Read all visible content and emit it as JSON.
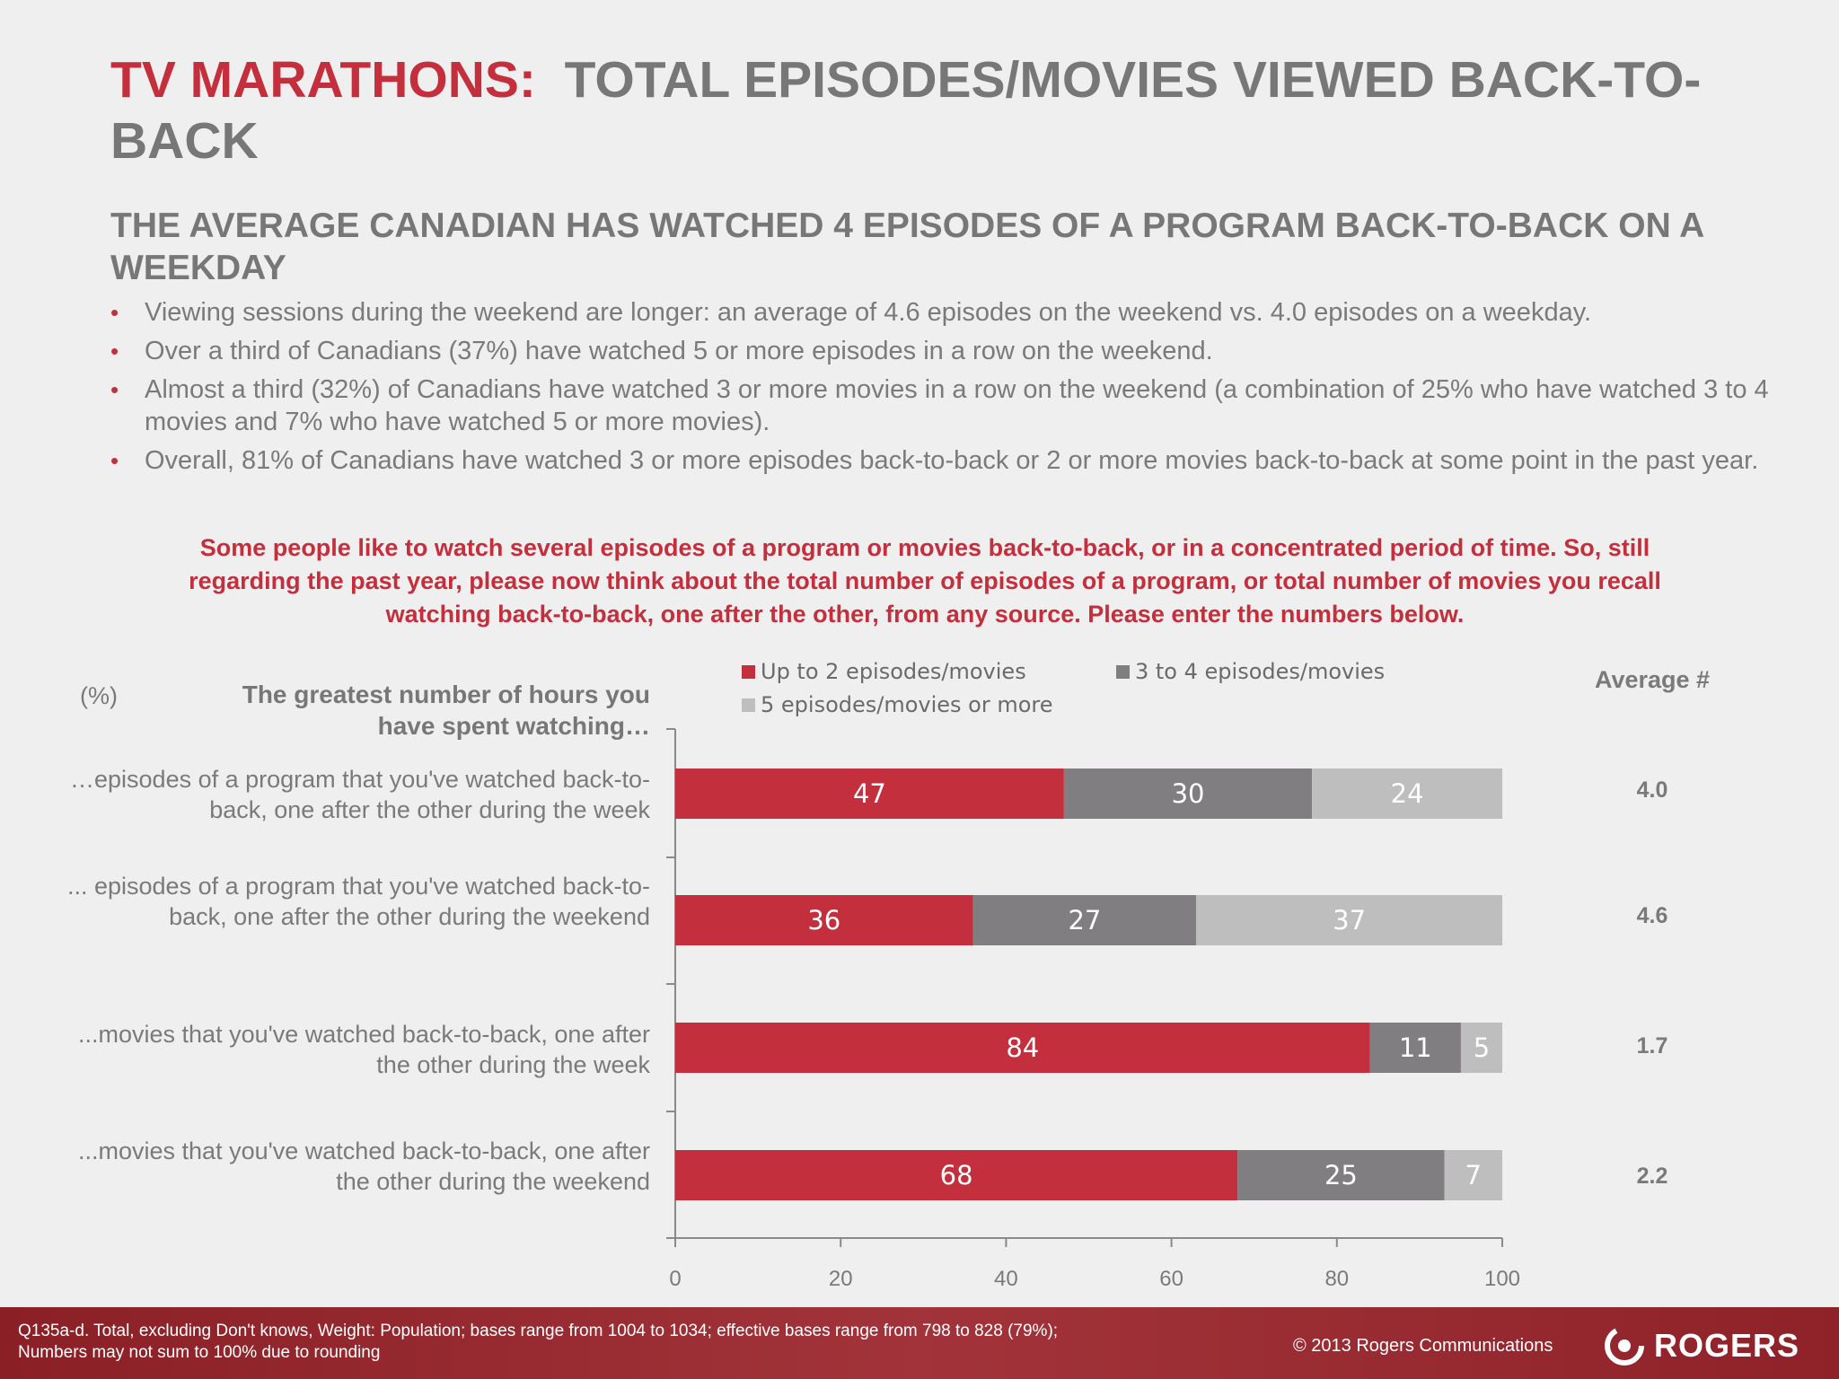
{
  "title": {
    "prefix": "TV MARATHONS:",
    "rest": "TOTAL EPISODES/MOVIES VIEWED BACK-TO-BACK"
  },
  "subtitle": "THE AVERAGE CANADIAN HAS WATCHED 4 EPISODES OF A PROGRAM BACK-TO-BACK ON A WEEKDAY",
  "bullets": [
    "Viewing sessions during the weekend are longer: an average of 4.6 episodes on the weekend vs. 4.0 episodes on a weekday.",
    "Over a third of Canadians (37%) have watched 5 or more episodes  in a row on the  weekend.",
    "Almost a third (32%) of Canadians have watched 3 or more movies in a row on the weekend (a combination of 25% who have watched 3 to 4 movies and 7% who have watched 5 or more movies).",
    "Overall, 81% of Canadians have watched 3 or more episodes back-to-back or 2 or more movies back-to-back at some point in the past year."
  ],
  "question": "Some people like to watch several episodes of a program or movies back-to-back, or in a concentrated period of time. So, still regarding the past year, please now think about the total number of episodes of a program, or total number of movies you recall watching back-to-back, one after the other, from any source. Please enter the numbers below.",
  "pct_label": "(%)",
  "y_header": "The greatest number of hours you have spent watching…",
  "avg_header": "Average #",
  "colors": {
    "red": "#c32f3c",
    "dark_gray": "#807e81",
    "light_gray": "#bfbebf"
  },
  "chart_data": {
    "type": "bar",
    "orientation": "horizontal",
    "stacked": true,
    "categories": [
      "…episodes of a program that you've watched back-to-back, one after the other during the week",
      "... episodes of a program that you've watched back-to-back, one after the other during the weekend",
      "...movies  that you've watched back-to-back, one after the other during the week",
      "...movies  that you've watched back-to-back, one after the other during the weekend"
    ],
    "series": [
      {
        "name": "Up to 2 episodes/movies",
        "values": [
          47,
          36,
          84,
          68
        ],
        "color": "#c32f3c"
      },
      {
        "name": "3 to 4 episodes/movies",
        "values": [
          30,
          27,
          11,
          25
        ],
        "color": "#807e81"
      },
      {
        "name": "5 episodes/movies or more",
        "values": [
          24,
          37,
          5,
          7
        ],
        "color": "#bfbebf"
      }
    ],
    "averages": [
      "4.0",
      "4.6",
      "1.7",
      "2.2"
    ],
    "xlim": [
      0,
      100
    ],
    "xticks": [
      "0",
      "20",
      "40",
      "60",
      "80",
      "100"
    ],
    "legend": "top"
  },
  "footer": {
    "note": "Q135a-d. Total, excluding Don't knows, Weight: Population;  bases range from 1004 to 1034;  effective bases range from 798 to 828 (79%); Numbers may not sum to 100% due to rounding",
    "copyright": "© 2013 Rogers Communications",
    "logo_text": "ROGERS"
  }
}
